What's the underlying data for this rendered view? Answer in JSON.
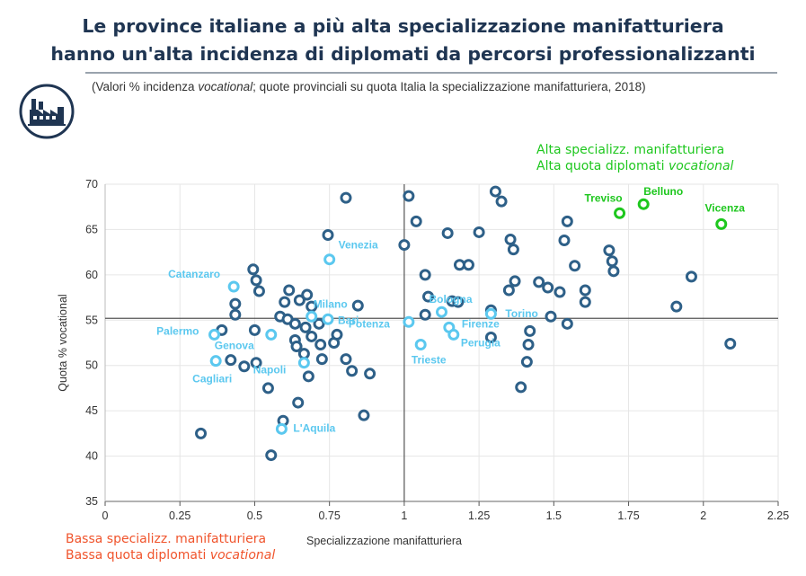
{
  "title_line1": "Le province italiane a più alta specializzazione manifatturiera",
  "title_line2": "hanno un'alta incidenza di diplomati da percorsi professionalizzanti",
  "subtitle_prefix": "(Valori % incidenza ",
  "subtitle_em": "vocational",
  "subtitle_suffix": "; quote provinciali su quota Italia  la specializzazione manifatturiera, 2018)",
  "icon": "factory-icon",
  "quadrant_high": {
    "line1": "Alta specializz. manifatturiera",
    "line2_prefix": "Alta quota diplomati ",
    "line2_em": "vocational"
  },
  "quadrant_low": {
    "line1": "Bassa specializz. manifatturiera",
    "line2_prefix": "Bassa quota diplomati ",
    "line2_em": "vocational"
  },
  "colors": {
    "title": "#1f3552",
    "base_point": "#2e6088",
    "labeled_point": "#5bc8ef",
    "high_point": "#1ec71e",
    "high_text": "#1ec71e",
    "low_text": "#f0542c",
    "grid": "#e6e6e6",
    "ref_line": "#555555"
  },
  "chart_data": {
    "type": "scatter",
    "xlabel": "Specializzazione manifatturiera",
    "ylabel": "Quota % vocational",
    "xlim": [
      0,
      2.25
    ],
    "ylim": [
      35,
      70
    ],
    "xticks": [
      0,
      0.25,
      0.5,
      0.75,
      1,
      1.25,
      1.5,
      1.75,
      2,
      2.25
    ],
    "xtick_labels": [
      "0",
      "0.25",
      "0.5",
      "0.75",
      "1",
      "1.25",
      "1.5",
      "1.75",
      "2",
      "2.25"
    ],
    "yticks": [
      35,
      40,
      45,
      50,
      55,
      60,
      65,
      70
    ],
    "ytick_labels": [
      "35",
      "40",
      "45",
      "50",
      "55",
      "60",
      "65",
      "70"
    ],
    "grid": true,
    "reference_lines": {
      "x": 1,
      "y": 55.2
    },
    "points": [
      {
        "x": 0.32,
        "y": 42.5
      },
      {
        "x": 0.39,
        "y": 53.9
      },
      {
        "x": 0.42,
        "y": 50.6
      },
      {
        "x": 0.435,
        "y": 55.6
      },
      {
        "x": 0.435,
        "y": 56.8
      },
      {
        "x": 0.465,
        "y": 49.9
      },
      {
        "x": 0.495,
        "y": 60.6
      },
      {
        "x": 0.505,
        "y": 59.4
      },
      {
        "x": 0.5,
        "y": 53.9
      },
      {
        "x": 0.505,
        "y": 50.3
      },
      {
        "x": 0.515,
        "y": 58.2
      },
      {
        "x": 0.545,
        "y": 47.5
      },
      {
        "x": 0.555,
        "y": 40.1
      },
      {
        "x": 0.585,
        "y": 55.4
      },
      {
        "x": 0.595,
        "y": 43.9
      },
      {
        "x": 0.6,
        "y": 57.0
      },
      {
        "x": 0.61,
        "y": 55.1
      },
      {
        "x": 0.615,
        "y": 58.3
      },
      {
        "x": 0.635,
        "y": 54.6
      },
      {
        "x": 0.635,
        "y": 52.8
      },
      {
        "x": 0.64,
        "y": 52.1
      },
      {
        "x": 0.645,
        "y": 45.9
      },
      {
        "x": 0.65,
        "y": 57.2
      },
      {
        "x": 0.665,
        "y": 51.3
      },
      {
        "x": 0.67,
        "y": 54.2
      },
      {
        "x": 0.675,
        "y": 57.8
      },
      {
        "x": 0.68,
        "y": 48.8
      },
      {
        "x": 0.69,
        "y": 56.5
      },
      {
        "x": 0.69,
        "y": 53.2
      },
      {
        "x": 0.715,
        "y": 54.6
      },
      {
        "x": 0.72,
        "y": 52.3
      },
      {
        "x": 0.725,
        "y": 50.7
      },
      {
        "x": 0.745,
        "y": 64.4
      },
      {
        "x": 0.765,
        "y": 52.5
      },
      {
        "x": 0.775,
        "y": 53.4
      },
      {
        "x": 0.805,
        "y": 68.5
      },
      {
        "x": 0.805,
        "y": 50.7
      },
      {
        "x": 0.825,
        "y": 49.4
      },
      {
        "x": 0.845,
        "y": 56.6
      },
      {
        "x": 0.865,
        "y": 44.5
      },
      {
        "x": 0.885,
        "y": 49.1
      },
      {
        "x": 1.0,
        "y": 63.3
      },
      {
        "x": 1.015,
        "y": 68.7
      },
      {
        "x": 1.04,
        "y": 65.9
      },
      {
        "x": 1.07,
        "y": 60.0
      },
      {
        "x": 1.07,
        "y": 55.6
      },
      {
        "x": 1.08,
        "y": 57.6
      },
      {
        "x": 1.145,
        "y": 64.6
      },
      {
        "x": 1.16,
        "y": 57.1
      },
      {
        "x": 1.18,
        "y": 57.0
      },
      {
        "x": 1.185,
        "y": 61.1
      },
      {
        "x": 1.215,
        "y": 61.1
      },
      {
        "x": 1.25,
        "y": 64.7
      },
      {
        "x": 1.29,
        "y": 56.1
      },
      {
        "x": 1.29,
        "y": 53.1
      },
      {
        "x": 1.305,
        "y": 69.2
      },
      {
        "x": 1.325,
        "y": 68.1
      },
      {
        "x": 1.35,
        "y": 58.3
      },
      {
        "x": 1.355,
        "y": 63.9
      },
      {
        "x": 1.365,
        "y": 62.8
      },
      {
        "x": 1.37,
        "y": 59.3
      },
      {
        "x": 1.39,
        "y": 47.6
      },
      {
        "x": 1.41,
        "y": 50.4
      },
      {
        "x": 1.415,
        "y": 52.3
      },
      {
        "x": 1.42,
        "y": 53.8
      },
      {
        "x": 1.45,
        "y": 59.2
      },
      {
        "x": 1.48,
        "y": 58.6
      },
      {
        "x": 1.49,
        "y": 55.4
      },
      {
        "x": 1.52,
        "y": 58.1
      },
      {
        "x": 1.535,
        "y": 63.8
      },
      {
        "x": 1.545,
        "y": 54.6
      },
      {
        "x": 1.545,
        "y": 65.9
      },
      {
        "x": 1.57,
        "y": 61.0
      },
      {
        "x": 1.605,
        "y": 58.3
      },
      {
        "x": 1.605,
        "y": 57.0
      },
      {
        "x": 1.685,
        "y": 62.7
      },
      {
        "x": 1.695,
        "y": 61.5
      },
      {
        "x": 1.7,
        "y": 60.4
      },
      {
        "x": 1.91,
        "y": 56.5
      },
      {
        "x": 1.96,
        "y": 59.8
      },
      {
        "x": 2.09,
        "y": 52.4
      }
    ],
    "labeled_points": [
      {
        "x": 0.43,
        "y": 58.7,
        "label": "Catanzaro"
      },
      {
        "x": 0.75,
        "y": 61.7,
        "label": "Venezia"
      },
      {
        "x": 0.69,
        "y": 55.4,
        "label": "Milano"
      },
      {
        "x": 0.745,
        "y": 55.1,
        "label": "Bari"
      },
      {
        "x": 0.365,
        "y": 53.4,
        "label": "Palermo"
      },
      {
        "x": 0.555,
        "y": 53.4,
        "label": "Genova"
      },
      {
        "x": 0.37,
        "y": 50.5,
        "label": "Cagliari"
      },
      {
        "x": 0.665,
        "y": 50.3,
        "label": "Napoli"
      },
      {
        "x": 0.59,
        "y": 43.0,
        "label": "L'Aquila"
      },
      {
        "x": 1.015,
        "y": 54.8,
        "label": "Potenza"
      },
      {
        "x": 1.125,
        "y": 55.9,
        "label": "Bologna"
      },
      {
        "x": 1.29,
        "y": 55.7,
        "label": "Torino"
      },
      {
        "x": 1.15,
        "y": 54.2,
        "label": "Firenze"
      },
      {
        "x": 1.165,
        "y": 53.4,
        "label": "Perugia"
      },
      {
        "x": 1.055,
        "y": 52.3,
        "label": "Trieste"
      }
    ],
    "high_points": [
      {
        "x": 1.72,
        "y": 66.8,
        "label": "Treviso"
      },
      {
        "x": 1.8,
        "y": 67.8,
        "label": "Belluno"
      },
      {
        "x": 2.06,
        "y": 65.6,
        "label": "Vicenza"
      }
    ]
  }
}
